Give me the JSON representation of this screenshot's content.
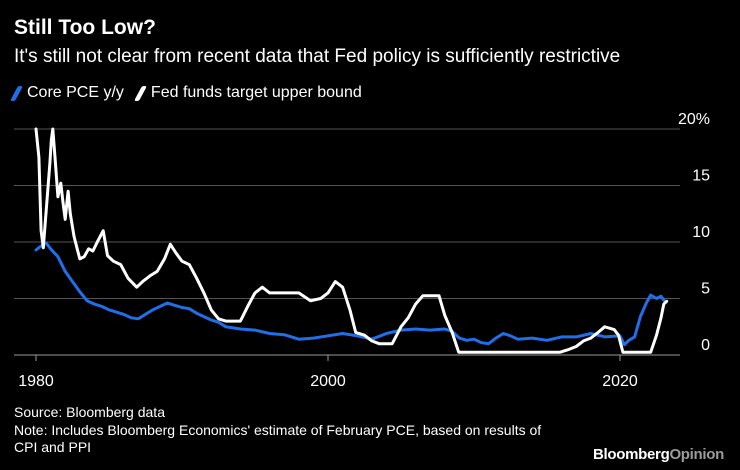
{
  "header": {
    "title": "Still Too Low?",
    "subtitle": "It's still not clear from recent data that Fed policy is sufficiently restrictive"
  },
  "footer": {
    "source": "Source: Bloomberg data",
    "note": "Note: Includes Bloomberg Economics' estimate of February PCE, based on results of CPI and PPI",
    "brand_main": "Bloomberg",
    "brand_accent": "Opinion"
  },
  "colors": {
    "background": "#000000",
    "core_pce": "#1f6fe8",
    "fed_funds": "#ffffff",
    "grid": "#555555"
  },
  "chart_data": {
    "type": "line",
    "xlim": [
      1980,
      2023.5
    ],
    "ylim": [
      0,
      20
    ],
    "x_ticks": [
      1980,
      2000,
      2020
    ],
    "x_tick_labels": [
      "1980",
      "2000",
      "2020"
    ],
    "y_ticks": [
      0,
      5,
      10,
      15,
      20
    ],
    "y_tick_labels": [
      "0",
      "5",
      "10",
      "15",
      "20%"
    ],
    "grid": true,
    "y_axis_side": "right",
    "legend_position": "top-left",
    "series": [
      {
        "name": "Core PCE y/y",
        "color": "#1f6fe8",
        "points": [
          [
            1980.0,
            9.3
          ],
          [
            1980.3,
            9.6
          ],
          [
            1980.7,
            9.9
          ],
          [
            1981.0,
            9.4
          ],
          [
            1981.5,
            8.7
          ],
          [
            1982.0,
            7.4
          ],
          [
            1982.5,
            6.5
          ],
          [
            1983.0,
            5.6
          ],
          [
            1983.5,
            4.8
          ],
          [
            1984.0,
            4.5
          ],
          [
            1984.5,
            4.3
          ],
          [
            1985.0,
            4.0
          ],
          [
            1985.5,
            3.8
          ],
          [
            1986.0,
            3.6
          ],
          [
            1986.5,
            3.3
          ],
          [
            1987.0,
            3.2
          ],
          [
            1987.5,
            3.6
          ],
          [
            1988.0,
            4.0
          ],
          [
            1988.5,
            4.3
          ],
          [
            1989.0,
            4.6
          ],
          [
            1989.5,
            4.4
          ],
          [
            1990.0,
            4.2
          ],
          [
            1990.5,
            4.1
          ],
          [
            1991.0,
            3.7
          ],
          [
            1991.5,
            3.4
          ],
          [
            1992.0,
            3.1
          ],
          [
            1992.5,
            2.9
          ],
          [
            1993.0,
            2.5
          ],
          [
            1993.5,
            2.4
          ],
          [
            1994.0,
            2.3
          ],
          [
            1995.0,
            2.2
          ],
          [
            1996.0,
            1.9
          ],
          [
            1997.0,
            1.8
          ],
          [
            1998.0,
            1.4
          ],
          [
            1999.0,
            1.5
          ],
          [
            2000.0,
            1.7
          ],
          [
            2001.0,
            1.9
          ],
          [
            2002.0,
            1.7
          ],
          [
            2003.0,
            1.4
          ],
          [
            2004.0,
            1.9
          ],
          [
            2005.0,
            2.2
          ],
          [
            2006.0,
            2.3
          ],
          [
            2007.0,
            2.2
          ],
          [
            2008.0,
            2.3
          ],
          [
            2008.5,
            2.1
          ],
          [
            2009.0,
            1.5
          ],
          [
            2009.5,
            1.3
          ],
          [
            2010.0,
            1.4
          ],
          [
            2010.5,
            1.1
          ],
          [
            2011.0,
            1.0
          ],
          [
            2011.5,
            1.5
          ],
          [
            2012.0,
            1.9
          ],
          [
            2012.5,
            1.7
          ],
          [
            2013.0,
            1.4
          ],
          [
            2014.0,
            1.5
          ],
          [
            2015.0,
            1.3
          ],
          [
            2016.0,
            1.6
          ],
          [
            2017.0,
            1.6
          ],
          [
            2018.0,
            1.9
          ],
          [
            2019.0,
            1.6
          ],
          [
            2020.0,
            1.7
          ],
          [
            2020.3,
            0.9
          ],
          [
            2020.6,
            1.3
          ],
          [
            2021.0,
            1.6
          ],
          [
            2021.4,
            3.4
          ],
          [
            2021.8,
            4.6
          ],
          [
            2022.1,
            5.3
          ],
          [
            2022.5,
            5.0
          ],
          [
            2022.8,
            5.2
          ],
          [
            2023.1,
            4.7
          ]
        ]
      },
      {
        "name": "Fed funds target upper bound",
        "color": "#ffffff",
        "points": [
          [
            1980.0,
            20.0
          ],
          [
            1980.2,
            17.5
          ],
          [
            1980.35,
            11.0
          ],
          [
            1980.5,
            9.5
          ],
          [
            1980.65,
            12.0
          ],
          [
            1980.8,
            14.5
          ],
          [
            1980.95,
            17.0
          ],
          [
            1981.05,
            19.0
          ],
          [
            1981.15,
            20.0
          ],
          [
            1981.3,
            17.5
          ],
          [
            1981.5,
            14.0
          ],
          [
            1981.7,
            15.2
          ],
          [
            1981.85,
            13.5
          ],
          [
            1982.0,
            12.0
          ],
          [
            1982.2,
            14.5
          ],
          [
            1982.35,
            12.5
          ],
          [
            1982.6,
            10.5
          ],
          [
            1982.8,
            9.5
          ],
          [
            1983.0,
            8.5
          ],
          [
            1983.3,
            8.7
          ],
          [
            1983.6,
            9.4
          ],
          [
            1983.9,
            9.2
          ],
          [
            1984.2,
            10.0
          ],
          [
            1984.6,
            11.0
          ],
          [
            1984.9,
            8.8
          ],
          [
            1985.3,
            8.3
          ],
          [
            1985.8,
            8.0
          ],
          [
            1986.3,
            6.8
          ],
          [
            1986.9,
            6.0
          ],
          [
            1987.3,
            6.5
          ],
          [
            1987.8,
            7.0
          ],
          [
            1988.3,
            7.4
          ],
          [
            1988.8,
            8.5
          ],
          [
            1989.2,
            9.8
          ],
          [
            1989.6,
            9.0
          ],
          [
            1990.0,
            8.3
          ],
          [
            1990.5,
            8.0
          ],
          [
            1991.0,
            6.8
          ],
          [
            1991.5,
            5.5
          ],
          [
            1992.0,
            4.0
          ],
          [
            1992.5,
            3.2
          ],
          [
            1993.0,
            3.0
          ],
          [
            1994.0,
            3.0
          ],
          [
            1994.5,
            4.3
          ],
          [
            1995.0,
            5.5
          ],
          [
            1995.5,
            6.0
          ],
          [
            1996.0,
            5.5
          ],
          [
            1997.0,
            5.5
          ],
          [
            1998.0,
            5.5
          ],
          [
            1998.8,
            4.8
          ],
          [
            1999.5,
            5.0
          ],
          [
            2000.0,
            5.5
          ],
          [
            2000.5,
            6.5
          ],
          [
            2001.0,
            6.0
          ],
          [
            2001.5,
            4.0
          ],
          [
            2001.9,
            2.0
          ],
          [
            2002.5,
            1.75
          ],
          [
            2003.0,
            1.25
          ],
          [
            2003.5,
            1.0
          ],
          [
            2004.4,
            1.0
          ],
          [
            2005.0,
            2.5
          ],
          [
            2005.5,
            3.3
          ],
          [
            2006.0,
            4.5
          ],
          [
            2006.5,
            5.25
          ],
          [
            2007.6,
            5.25
          ],
          [
            2008.0,
            3.5
          ],
          [
            2008.5,
            2.0
          ],
          [
            2008.95,
            0.25
          ],
          [
            2015.9,
            0.25
          ],
          [
            2016.5,
            0.5
          ],
          [
            2017.0,
            0.75
          ],
          [
            2017.5,
            1.25
          ],
          [
            2018.0,
            1.5
          ],
          [
            2018.5,
            2.0
          ],
          [
            2018.95,
            2.5
          ],
          [
            2019.6,
            2.25
          ],
          [
            2019.9,
            1.75
          ],
          [
            2020.2,
            0.25
          ],
          [
            2022.1,
            0.25
          ],
          [
            2022.5,
            1.75
          ],
          [
            2022.8,
            3.25
          ],
          [
            2023.0,
            4.5
          ],
          [
            2023.2,
            4.75
          ]
        ]
      }
    ]
  }
}
